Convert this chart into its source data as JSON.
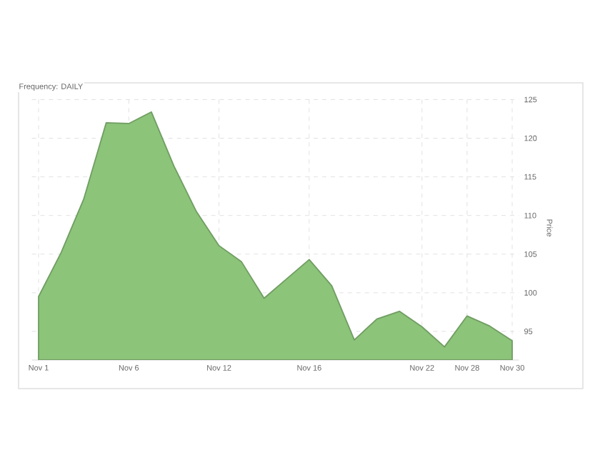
{
  "chart_data": {
    "type": "area",
    "title": "Frequency: DAILY",
    "ylabel": "Price",
    "categories": [
      "Nov 1",
      null,
      null,
      null,
      "Nov 6",
      null,
      null,
      null,
      "Nov 12",
      null,
      null,
      null,
      "Nov 16",
      null,
      null,
      null,
      null,
      "Nov 22",
      null,
      "Nov 28",
      null,
      "Nov 30"
    ],
    "series": [
      {
        "color": "#8cc47a",
        "values": [
          99.5,
          105.2,
          112.1,
          122.0,
          121.9,
          123.4,
          116.4,
          110.5,
          106.1,
          104.0,
          99.3,
          101.8,
          104.3,
          100.9,
          93.9,
          96.6,
          97.6,
          95.6,
          93.0,
          97.0,
          95.7,
          93.8
        ]
      }
    ],
    "ylim": [
      91.3,
      125.5
    ],
    "yticks": [
      95,
      100,
      105,
      110,
      115,
      120,
      125
    ],
    "grid": true
  }
}
